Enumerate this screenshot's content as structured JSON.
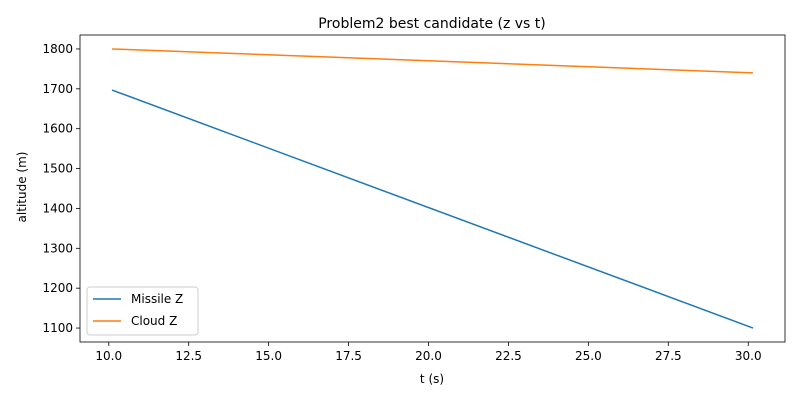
{
  "chart_data": {
    "type": "line",
    "title": "Problem2 best candidate (z vs t)",
    "xlabel": "t (s)",
    "ylabel": "altitude (m)",
    "xlim": [
      9.1,
      31.15
    ],
    "ylim": [
      1065,
      1835
    ],
    "xticks": [
      10.0,
      12.5,
      15.0,
      17.5,
      20.0,
      22.5,
      25.0,
      27.5,
      30.0
    ],
    "xtick_labels": [
      "10.0",
      "12.5",
      "15.0",
      "17.5",
      "20.0",
      "22.5",
      "25.0",
      "27.5",
      "30.0"
    ],
    "yticks": [
      1100,
      1200,
      1300,
      1400,
      1500,
      1600,
      1700,
      1800
    ],
    "ytick_labels": [
      "1100",
      "1200",
      "1300",
      "1400",
      "1500",
      "1600",
      "1700",
      "1800"
    ],
    "grid": false,
    "legend_position": "lower-left",
    "series": [
      {
        "name": "Missile Z",
        "color": "#1f77b4",
        "x": [
          10.1,
          30.15
        ],
        "y": [
          1697,
          1100
        ]
      },
      {
        "name": "Cloud Z",
        "color": "#ff7f0e",
        "x": [
          10.1,
          30.15
        ],
        "y": [
          1800,
          1740
        ]
      }
    ]
  }
}
